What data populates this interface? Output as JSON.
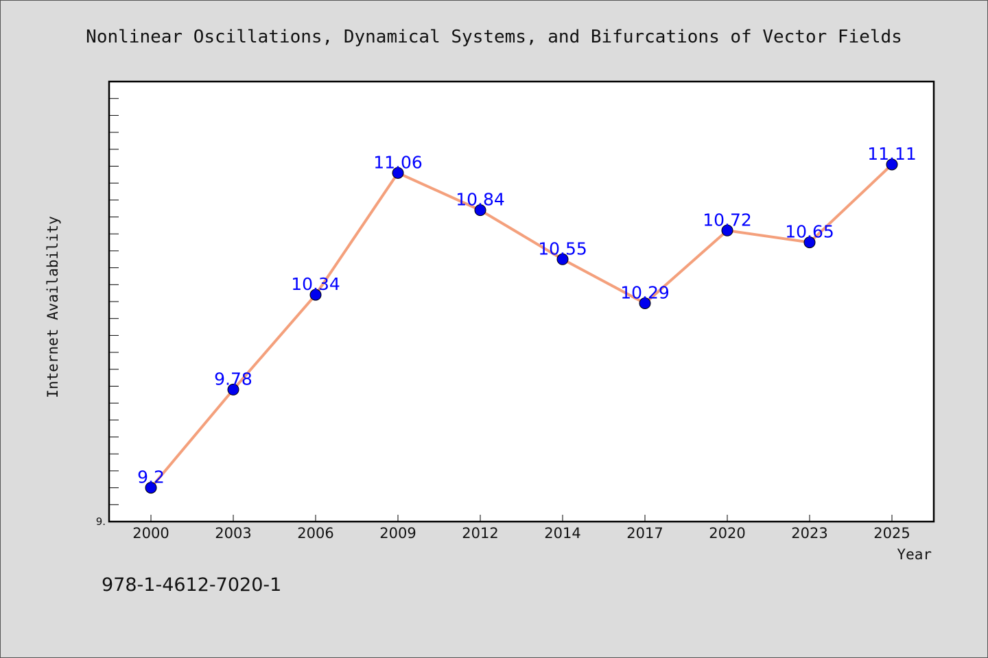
{
  "chart_data": {
    "type": "line",
    "title": "Nonlinear Oscillations, Dynamical Systems, and Bifurcations of Vector Fields",
    "xlabel": "Year",
    "ylabel": "Internet Availability",
    "categories": [
      "2000",
      "2003",
      "2006",
      "2009",
      "2012",
      "2014",
      "2017",
      "2020",
      "2023",
      "2025"
    ],
    "series": [
      {
        "values": [
          9.2,
          9.78,
          10.34,
          11.06,
          10.84,
          10.55,
          10.29,
          10.72,
          10.65,
          11.11
        ],
        "labels": [
          "9.2",
          "9.78",
          "10.34",
          "11.06",
          "10.84",
          "10.55",
          "10.29",
          "10.72",
          "10.65",
          "11.11"
        ]
      }
    ],
    "ylim": [
      9.0,
      11.6
    ],
    "y_tick_labels": [
      "9."
    ],
    "grid": false,
    "line_color": "#f4a07c",
    "marker_color": "#0000ee",
    "label_color": "#0000ff"
  },
  "footer": {
    "isbn": "978-1-4612-7020-1"
  }
}
